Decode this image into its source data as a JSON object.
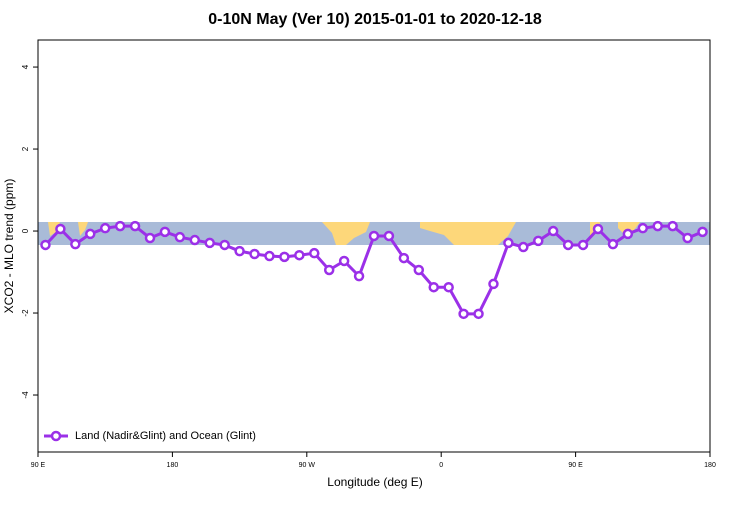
{
  "chart_data": {
    "type": "line",
    "title": "0-10N May (Ver 10)   2015-01-01 to 2020-12-18",
    "x_label": "Longitude (deg E)",
    "y_label": "XCO2 - MLO trend (ppm)",
    "x": [
      95,
      105,
      115,
      125,
      135,
      145,
      155,
      165,
      175,
      185,
      195,
      205,
      215,
      225,
      235,
      245,
      255,
      265,
      275,
      285,
      295,
      305,
      315,
      325,
      335,
      345,
      355,
      365,
      375,
      385,
      395,
      405,
      415,
      425,
      435,
      445,
      455,
      465,
      475,
      485,
      495,
      505,
      515,
      525,
      535
    ],
    "series": [
      {
        "name": "Land (Nadir&Glint) and Ocean (Glint)",
        "color": "#9b30e8",
        "values": [
          -0.34,
          0.05,
          -0.32,
          -0.07,
          0.07,
          0.12,
          0.12,
          -0.17,
          -0.02,
          -0.15,
          -0.22,
          -0.29,
          -0.34,
          -0.49,
          -0.56,
          -0.61,
          -0.63,
          -0.59,
          -0.54,
          -0.95,
          -0.73,
          -1.1,
          -0.12,
          -0.12,
          -0.66,
          -0.95,
          -1.37,
          -1.37,
          -2.02,
          -2.02,
          -1.29,
          -0.29,
          -0.39,
          -0.24,
          0.0,
          -0.34,
          -0.34,
          0.05,
          -0.32,
          -0.07,
          0.07,
          0.12,
          0.12,
          -0.17,
          -0.02
        ]
      }
    ],
    "xlim": [
      90,
      540
    ],
    "xticks": [
      {
        "value": 90,
        "label": "90 E"
      },
      180,
      {
        "value": 270,
        "label": "90 W"
      },
      {
        "value": 360,
        "label": "0"
      },
      {
        "value": 450,
        "label": "90 E"
      },
      {
        "value": 540,
        "label": "180"
      }
    ],
    "ylim": [
      -5.39,
      4.66
    ],
    "yticks": [
      -4,
      -2,
      0,
      2,
      4
    ],
    "legend": "bottom-left"
  }
}
